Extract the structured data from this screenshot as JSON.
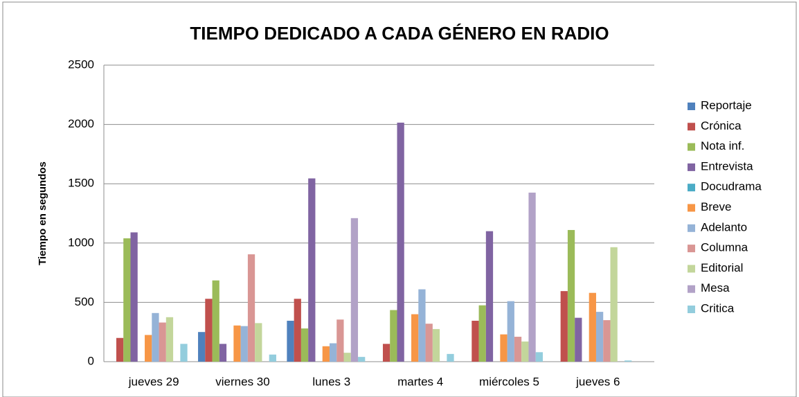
{
  "chart_data": {
    "type": "bar",
    "title": "TIEMPO DEDICADO A CADA GÉNERO EN RADIO",
    "y_label": "Tiempo en segundos",
    "categories": [
      "jueves 29",
      "viernes 30",
      "lunes 3",
      "martes 4",
      "miércoles 5",
      "jueves 6"
    ],
    "series": [
      {
        "name": "Reportaje",
        "color": "#4f81bd",
        "values": [
          0,
          250,
          345,
          0,
          0,
          0
        ]
      },
      {
        "name": "Crónica",
        "color": "#c0504d",
        "values": [
          200,
          530,
          530,
          150,
          345,
          595
        ]
      },
      {
        "name": "Nota inf.",
        "color": "#9bbb59",
        "values": [
          1040,
          685,
          280,
          435,
          475,
          1110
        ]
      },
      {
        "name": "Entrevista",
        "color": "#8064a2",
        "values": [
          1090,
          150,
          1545,
          2015,
          1100,
          370
        ]
      },
      {
        "name": "Docudrama",
        "color": "#4bacc6",
        "values": [
          0,
          0,
          0,
          0,
          0,
          0
        ]
      },
      {
        "name": "Breve",
        "color": "#f79646",
        "values": [
          225,
          305,
          130,
          400,
          230,
          580
        ]
      },
      {
        "name": "Adelanto",
        "color": "#95b3d7",
        "values": [
          410,
          300,
          155,
          610,
          510,
          420
        ]
      },
      {
        "name": "Columna",
        "color": "#d99694",
        "values": [
          330,
          905,
          355,
          320,
          210,
          350
        ]
      },
      {
        "name": "Editorial",
        "color": "#c3d69b",
        "values": [
          375,
          325,
          75,
          275,
          170,
          965
        ]
      },
      {
        "name": "Mesa",
        "color": "#b2a2c7",
        "values": [
          0,
          0,
          1210,
          0,
          1425,
          0
        ]
      },
      {
        "name": "Critica",
        "color": "#93cddd",
        "values": [
          150,
          60,
          40,
          65,
          80,
          10
        ]
      }
    ],
    "ylim": [
      0,
      2500
    ],
    "yticks": [
      0,
      500,
      1000,
      1500,
      2000,
      2500
    ],
    "grid": true,
    "legend": "right"
  }
}
